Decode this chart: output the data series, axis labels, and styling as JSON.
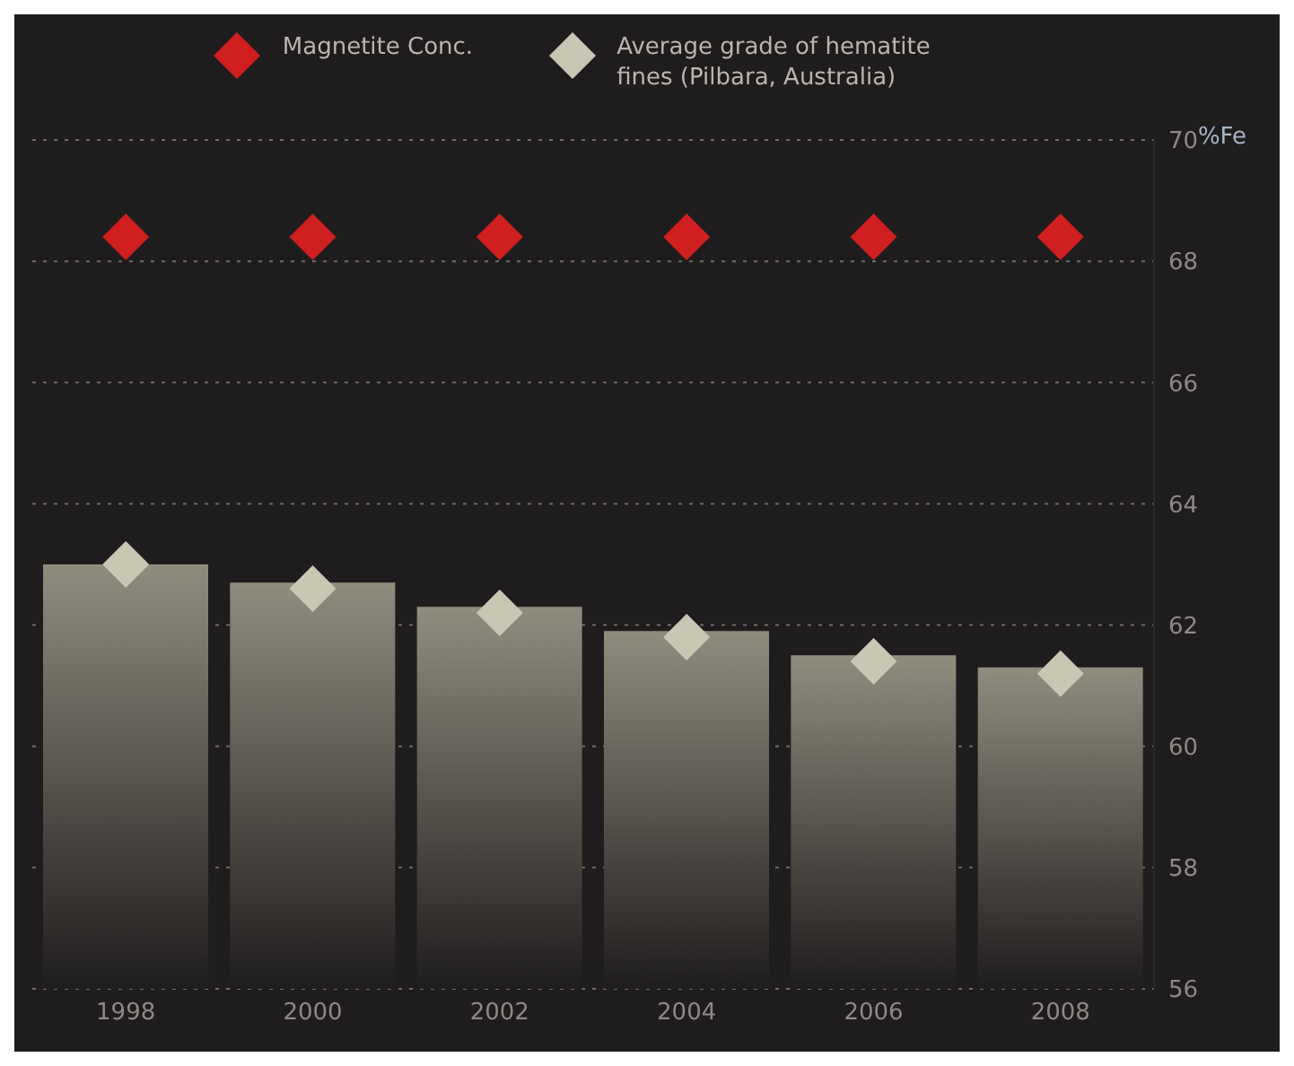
{
  "chart_data": {
    "type": "bar",
    "ylabel": "%Fe",
    "categories": [
      "1998",
      "2000",
      "2002",
      "2004",
      "2006",
      "2008"
    ],
    "series": [
      {
        "color": "#8f8d7e",
        "values": [
          63.0,
          62.7,
          62.3,
          61.9,
          61.5,
          61.3
        ]
      },
      {
        "type": "scatter",
        "name": "Magnetite Conc.",
        "color": "#d01f1f",
        "values": [
          68.4,
          68.4,
          68.4,
          68.4,
          68.4,
          68.4
        ]
      },
      {
        "type": "scatter",
        "name": "Average grade of hematite fines (Pilbara, Australia)",
        "color": "#c9c7b3",
        "values": [
          63.0,
          62.6,
          62.2,
          61.8,
          61.4,
          61.2
        ]
      }
    ],
    "ylim": [
      56,
      70
    ],
    "yticks": [
      56,
      58,
      60,
      62,
      64,
      66,
      68,
      70
    ],
    "grid": "y",
    "legend": "top",
    "marker": "diamond"
  }
}
